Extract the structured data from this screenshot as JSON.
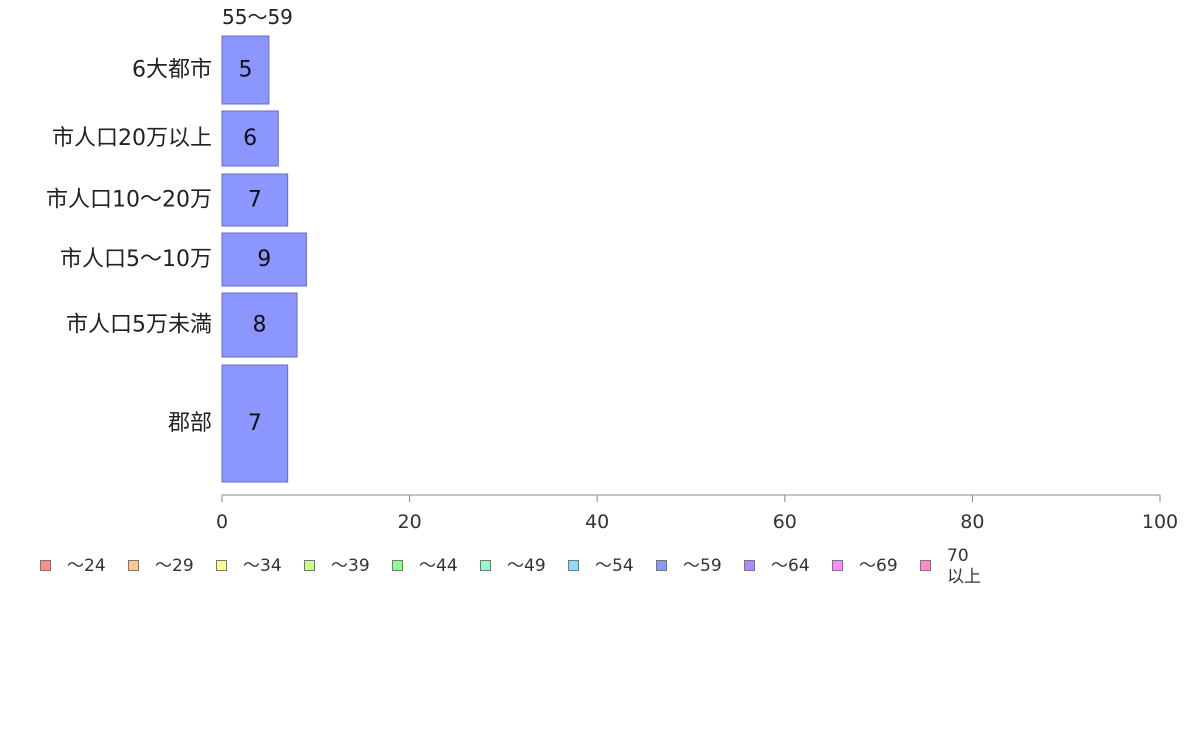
{
  "chart_data": {
    "type": "bar",
    "orientation": "horizontal",
    "series_label": "55〜59",
    "categories": [
      "6大都市",
      "市人口20万以上",
      "市人口10〜20万",
      "市人口5〜10万",
      "市人口5万未満",
      "郡部"
    ],
    "values": [
      5,
      6,
      7,
      9,
      8,
      7
    ],
    "xlim": [
      0,
      100
    ],
    "x_ticks": [
      "0",
      "20",
      "40",
      "60",
      "80",
      "100"
    ],
    "bar_color": "#8c96ff",
    "grid": false,
    "legend_position": "bottom",
    "legend": [
      {
        "label": "〜24",
        "color": "#ff8c8c"
      },
      {
        "label": "〜29",
        "color": "#ffc88c"
      },
      {
        "label": "〜34",
        "color": "#ffff8c"
      },
      {
        "label": "〜39",
        "color": "#c8ff8c"
      },
      {
        "label": "〜44",
        "color": "#8cff8c"
      },
      {
        "label": "〜49",
        "color": "#8cffc8"
      },
      {
        "label": "〜54",
        "color": "#8cdcff"
      },
      {
        "label": "〜59",
        "color": "#8c96ff"
      },
      {
        "label": "〜64",
        "color": "#aa8cff"
      },
      {
        "label": "〜69",
        "color": "#ff8cff"
      },
      {
        "label": "70以上",
        "line1": "70",
        "line2": "以上",
        "color": "#ff8cc8"
      }
    ]
  }
}
